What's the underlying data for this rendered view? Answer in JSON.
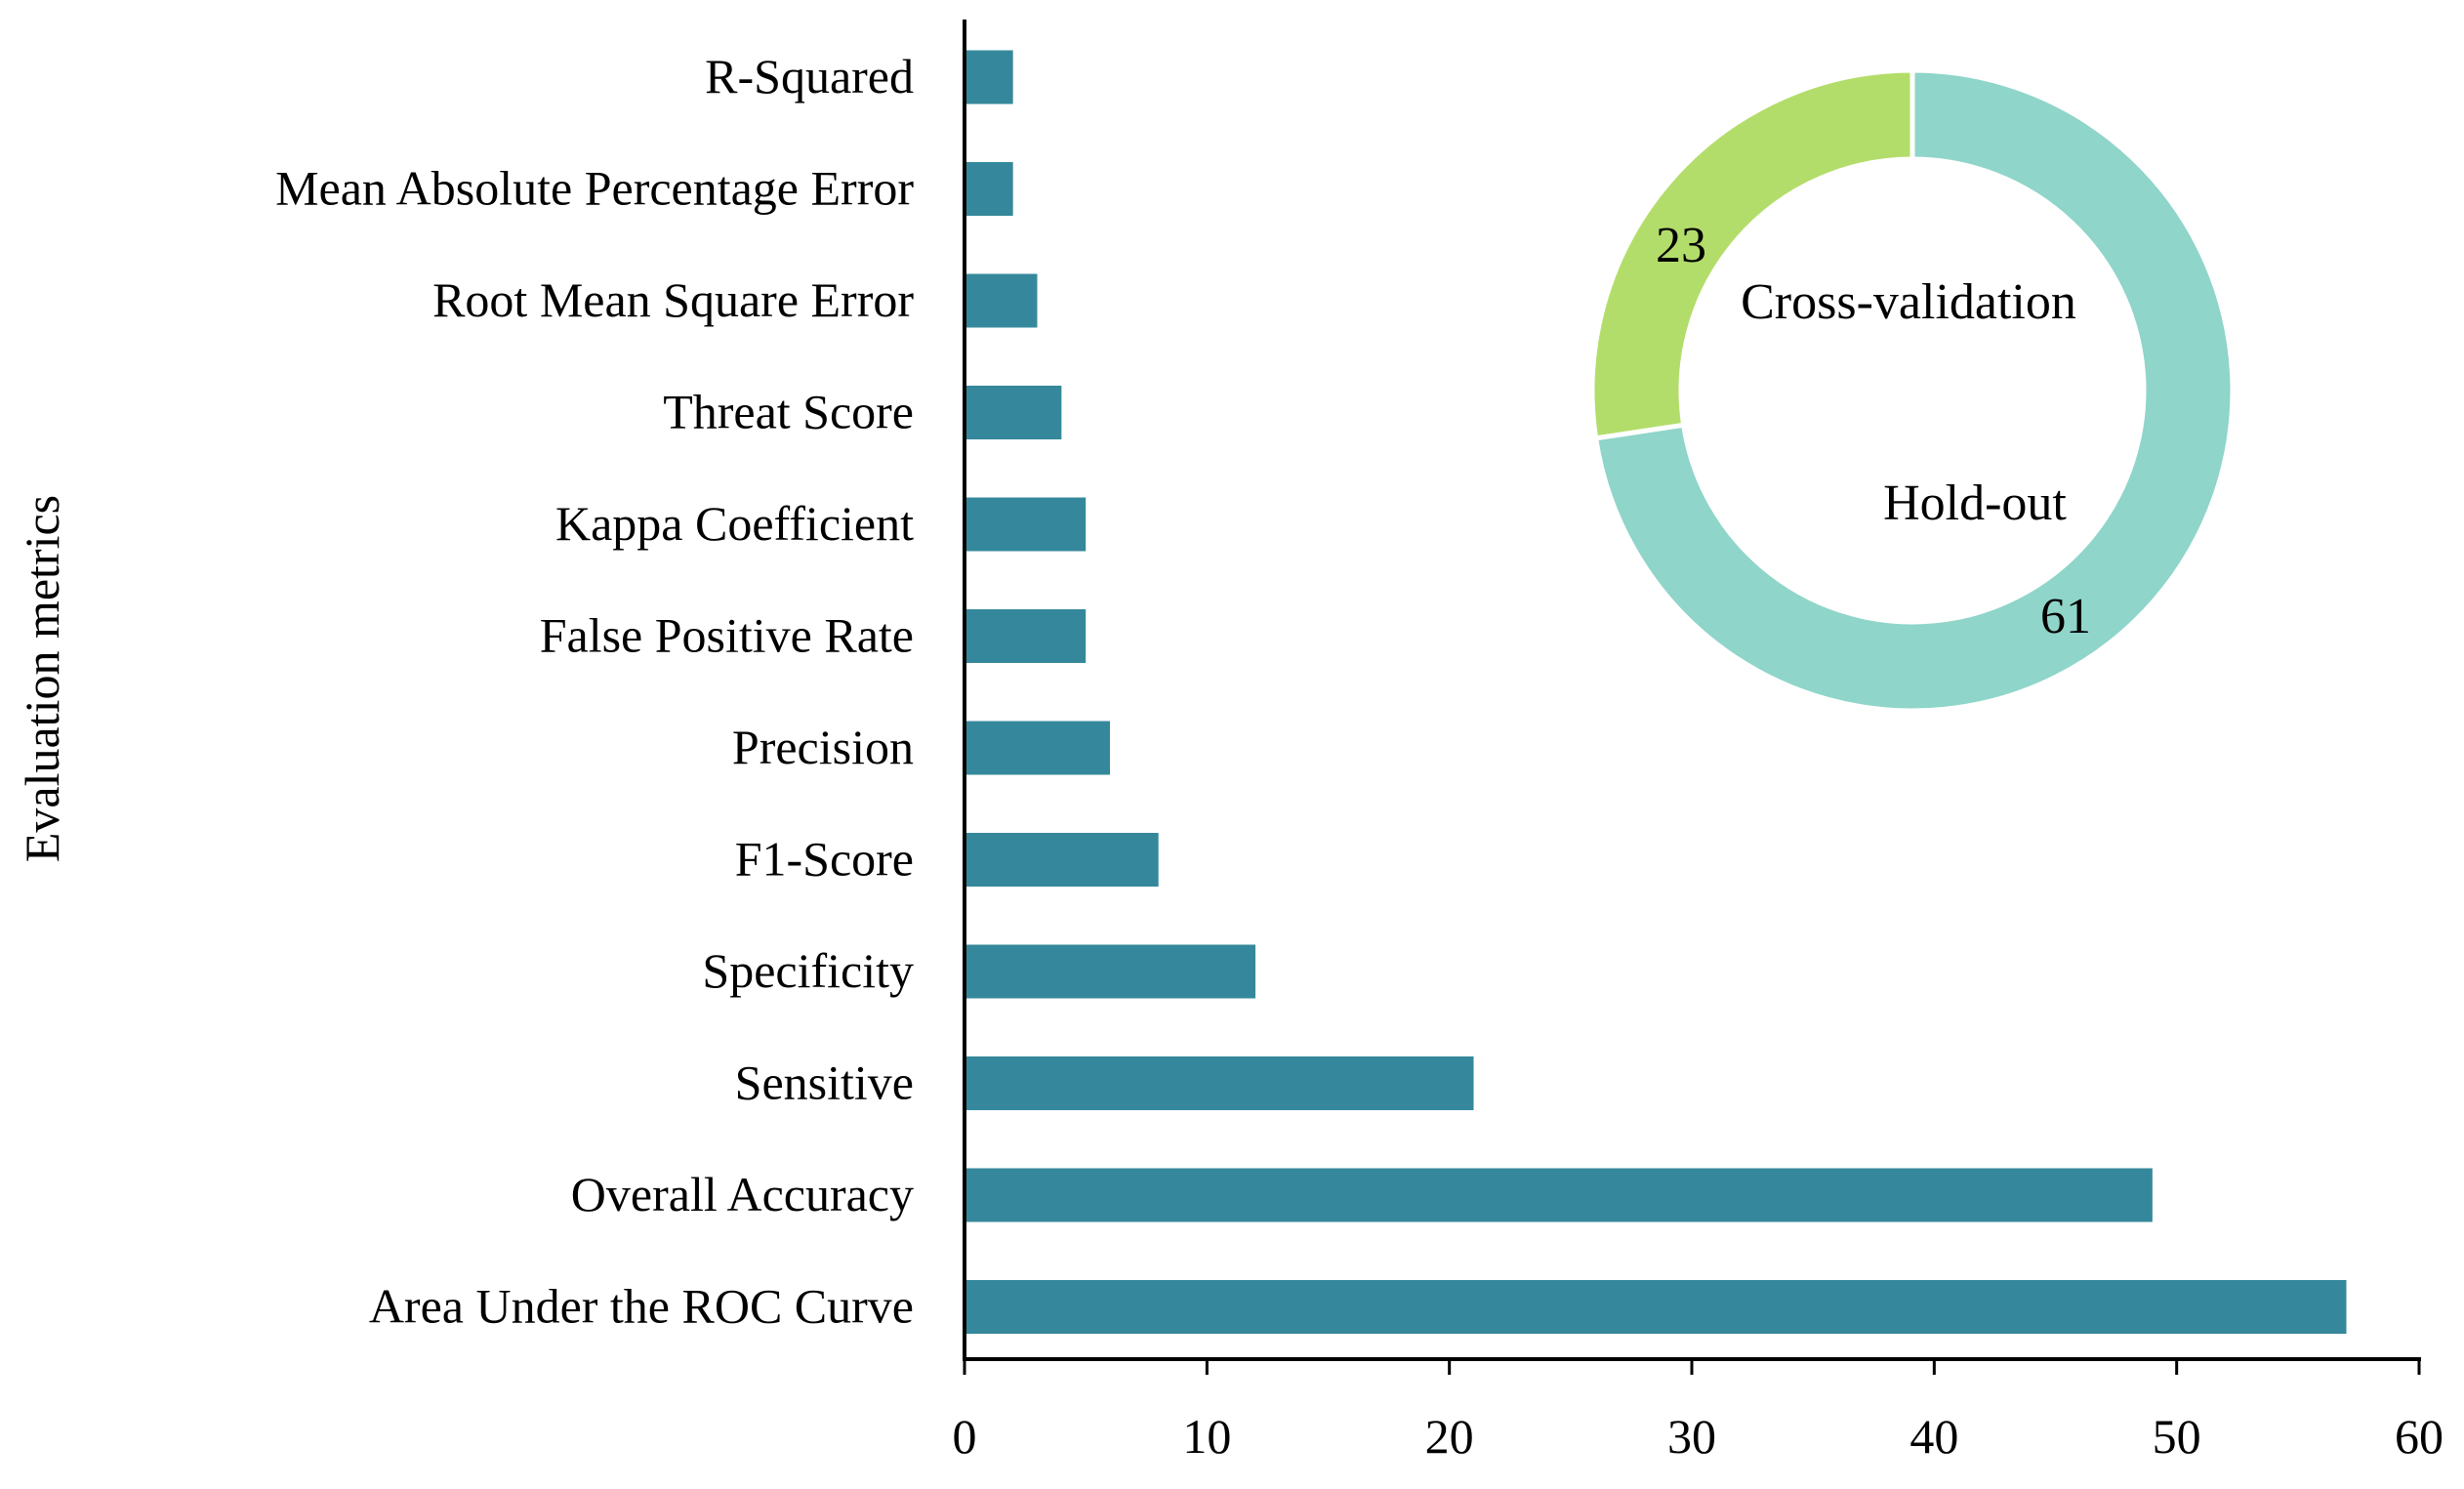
{
  "chart_data": [
    {
      "type": "bar",
      "orientation": "horizontal",
      "title": "",
      "xlabel": "",
      "ylabel": "Evaluation metrics",
      "categories": [
        "R-Squared",
        "Mean Absolute Percentage Error",
        "Root Mean Square Error",
        "Threat Score",
        "Kappa Coefficient",
        "False Positive Rate",
        "Precision",
        "F1-Score",
        "Specificity",
        "Sensitive",
        "Overall Accuracy",
        "Area Under the ROC Curve"
      ],
      "values": [
        2,
        2,
        3,
        4,
        5,
        5,
        6,
        8,
        12,
        21,
        49,
        57
      ],
      "xlim": [
        0,
        60
      ],
      "xticks": [
        0,
        10,
        20,
        30,
        40,
        50,
        60
      ],
      "grid": false,
      "color": "#35889b"
    },
    {
      "type": "pie",
      "style": "donut",
      "legend": "none",
      "slices": [
        {
          "label": "Cross-validation",
          "value": 23,
          "value_label": "23",
          "color": "#b3dd6a"
        },
        {
          "label": "Hold-out",
          "value": 61,
          "value_label": "61",
          "color": "#8fd5c9"
        }
      ]
    }
  ]
}
